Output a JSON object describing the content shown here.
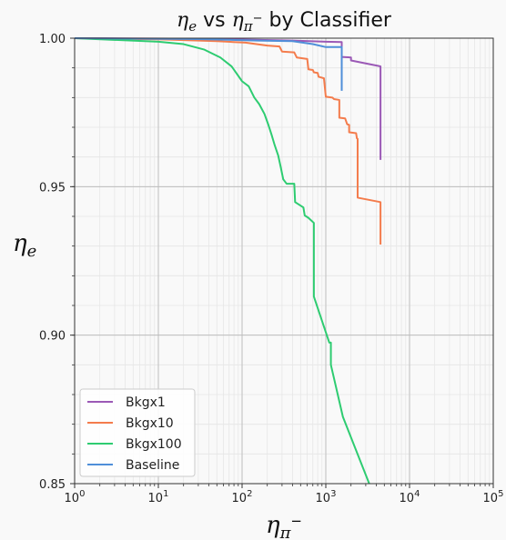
{
  "chart_data": {
    "type": "line",
    "title_parts": {
      "y_sym": "η",
      "y_sub": "e",
      "mid": " vs ",
      "x_sym": "η",
      "x_sub": "π",
      "x_sup": "−",
      "suffix": "  by Classifier"
    },
    "xlabel_parts": {
      "sym": "η",
      "sub": "π",
      "sup": "−"
    },
    "ylabel_parts": {
      "sym": "η",
      "sub": "e"
    },
    "x_scale": "log",
    "xlim": [
      1,
      100000
    ],
    "ylim": [
      0.85,
      1.0
    ],
    "x_ticks": [
      {
        "value": 1,
        "base": "10",
        "exp": "0"
      },
      {
        "value": 10,
        "base": "10",
        "exp": "1"
      },
      {
        "value": 100,
        "base": "10",
        "exp": "2"
      },
      {
        "value": 1000,
        "base": "10",
        "exp": "3"
      },
      {
        "value": 10000,
        "base": "10",
        "exp": "4"
      },
      {
        "value": 100000,
        "base": "10",
        "exp": "5"
      }
    ],
    "y_ticks": [
      {
        "value": 0.85,
        "label": "0.85"
      },
      {
        "value": 0.9,
        "label": "0.90"
      },
      {
        "value": 0.95,
        "label": "0.95"
      },
      {
        "value": 1.0,
        "label": "1.00"
      }
    ],
    "grid": "major and minor",
    "legend_position": "lower-left",
    "series": [
      {
        "name": "Bkgx1",
        "color": "#9b59b6",
        "points": [
          [
            1,
            1.0
          ],
          [
            30,
            0.9998
          ],
          [
            120,
            0.9995
          ],
          [
            400,
            0.9992
          ],
          [
            1000,
            0.9988
          ],
          [
            1550,
            0.9987
          ],
          [
            1550,
            0.9937
          ],
          [
            2000,
            0.9935
          ],
          [
            2000,
            0.9925
          ],
          [
            4500,
            0.9905
          ],
          [
            4500,
            0.959
          ]
        ]
      },
      {
        "name": "Bkgx10",
        "color": "#f47c4c",
        "points": [
          [
            1,
            1.0
          ],
          [
            10,
            0.9996
          ],
          [
            50,
            0.999
          ],
          [
            110,
            0.9985
          ],
          [
            200,
            0.9975
          ],
          [
            280,
            0.9972
          ],
          [
            300,
            0.9955
          ],
          [
            420,
            0.9952
          ],
          [
            450,
            0.9935
          ],
          [
            600,
            0.993
          ],
          [
            620,
            0.9895
          ],
          [
            700,
            0.9893
          ],
          [
            720,
            0.9885
          ],
          [
            800,
            0.9883
          ],
          [
            820,
            0.987
          ],
          [
            950,
            0.9865
          ],
          [
            1000,
            0.9803
          ],
          [
            1200,
            0.98
          ],
          [
            1250,
            0.9795
          ],
          [
            1450,
            0.9792
          ],
          [
            1450,
            0.9732
          ],
          [
            1700,
            0.973
          ],
          [
            1800,
            0.971
          ],
          [
            1900,
            0.9708
          ],
          [
            1900,
            0.9683
          ],
          [
            2300,
            0.968
          ],
          [
            2350,
            0.9663
          ],
          [
            2400,
            0.9661
          ],
          [
            2400,
            0.9463
          ],
          [
            4500,
            0.9448
          ],
          [
            4500,
            0.9305
          ]
        ]
      },
      {
        "name": "Bkgx100",
        "color": "#2ecc71",
        "points": [
          [
            1,
            1.0
          ],
          [
            10,
            0.9988
          ],
          [
            20,
            0.998
          ],
          [
            35,
            0.9962
          ],
          [
            55,
            0.9935
          ],
          [
            75,
            0.9905
          ],
          [
            100,
            0.9855
          ],
          [
            120,
            0.9838
          ],
          [
            140,
            0.98
          ],
          [
            160,
            0.9778
          ],
          [
            185,
            0.9745
          ],
          [
            205,
            0.971
          ],
          [
            225,
            0.9675
          ],
          [
            245,
            0.964
          ],
          [
            270,
            0.9605
          ],
          [
            290,
            0.9565
          ],
          [
            310,
            0.9525
          ],
          [
            340,
            0.951
          ],
          [
            420,
            0.951
          ],
          [
            430,
            0.9448
          ],
          [
            540,
            0.943
          ],
          [
            560,
            0.9403
          ],
          [
            620,
            0.9395
          ],
          [
            720,
            0.9378
          ],
          [
            720,
            0.913
          ],
          [
            1100,
            0.8975
          ],
          [
            1150,
            0.8975
          ],
          [
            1150,
            0.89
          ],
          [
            1600,
            0.8725
          ],
          [
            3300,
            0.85
          ]
        ]
      },
      {
        "name": "Baseline",
        "color": "#4f8fd9",
        "points": [
          [
            1,
            1.0
          ],
          [
            30,
            0.9997
          ],
          [
            150,
            0.9992
          ],
          [
            400,
            0.999
          ],
          [
            700,
            0.998
          ],
          [
            1000,
            0.997
          ],
          [
            1550,
            0.997
          ],
          [
            1550,
            0.9823
          ]
        ]
      }
    ]
  }
}
